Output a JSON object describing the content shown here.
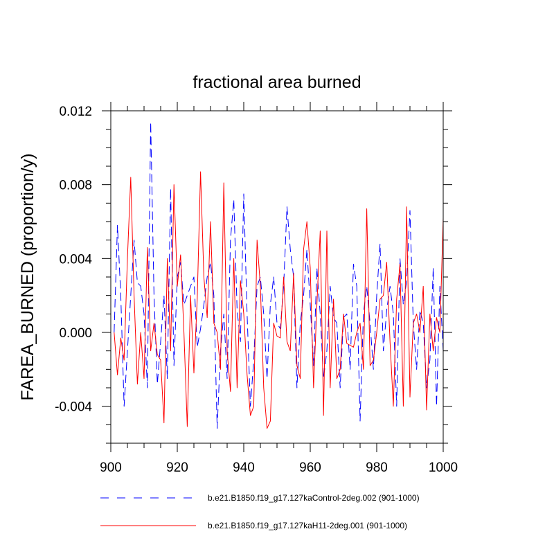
{
  "chart_data": {
    "type": "line",
    "title": "fractional area burned",
    "xlabel": "",
    "ylabel": "FAREA_BURNED  (proportion/y)",
    "xlim": [
      900,
      1000
    ],
    "ylim": [
      -0.006,
      0.012
    ],
    "xticks": [
      900,
      920,
      940,
      960,
      980,
      1000
    ],
    "xtick_labels": [
      "900",
      "920",
      "940",
      "960",
      "980",
      "1000"
    ],
    "yticks": [
      -0.004,
      0.0,
      0.004,
      0.008,
      0.012
    ],
    "ytick_labels": [
      "-0.004",
      "0.000",
      "0.004",
      "0.008",
      "0.012"
    ],
    "grid": false,
    "legend_placement": "bottom",
    "x": [
      901,
      902,
      903,
      904,
      905,
      906,
      907,
      908,
      909,
      910,
      911,
      912,
      913,
      914,
      915,
      916,
      917,
      918,
      919,
      920,
      921,
      922,
      923,
      924,
      925,
      926,
      927,
      928,
      929,
      930,
      931,
      932,
      933,
      934,
      935,
      936,
      937,
      938,
      939,
      940,
      941,
      942,
      943,
      944,
      945,
      946,
      947,
      948,
      949,
      950,
      951,
      952,
      953,
      954,
      955,
      956,
      957,
      958,
      959,
      960,
      961,
      962,
      963,
      964,
      965,
      966,
      967,
      968,
      969,
      970,
      971,
      972,
      973,
      974,
      975,
      976,
      977,
      978,
      979,
      980,
      981,
      982,
      983,
      984,
      985,
      986,
      987,
      988,
      989,
      990,
      991,
      992,
      993,
      994,
      995,
      996,
      997,
      998,
      999,
      1000
    ],
    "series": [
      {
        "name": "b.e21.B1850.f19_g17.127kaControl-2deg.002 (901-1000)",
        "color": "#0000ff",
        "dash": "dashed",
        "values": [
          0.0,
          0.0058,
          0.002,
          -0.004,
          -0.001,
          0.002,
          0.005,
          0.0027,
          0.0025,
          0.001,
          -0.003,
          0.0114,
          0.002,
          -0.0028,
          -0.0005,
          0.002,
          -0.0025,
          0.0078,
          -0.0018,
          0.003,
          0.0038,
          0.0015,
          0.002,
          0.0025,
          0.003,
          -0.0008,
          0.0002,
          0.0015,
          0.003,
          0.0038,
          0.002,
          -0.0052,
          -0.001,
          0.001,
          -0.0025,
          0.005,
          0.0072,
          0.0012,
          -0.0005,
          0.0075,
          0.001,
          -0.004,
          -0.0015,
          0.0025,
          0.003,
          0.001,
          -0.0025,
          0.0015,
          0.003,
          0.0005,
          0.0002,
          0.0025,
          0.0068,
          0.0045,
          0.003,
          -0.003,
          0.0005,
          0.002,
          0.0045,
          0.0015,
          -0.0018,
          0.0035,
          0.001,
          -0.0025,
          -0.001,
          0.0025,
          0.0008,
          0.0005,
          -0.003,
          0.0008,
          0.001,
          -0.002,
          0.0037,
          0.0025,
          -0.0048,
          0.001,
          0.0025,
          0.0005,
          -0.002,
          0.002,
          0.0048,
          -0.001,
          0.0012,
          0.0025,
          0.001,
          -0.004,
          0.004,
          0.0015,
          0.0028,
          0.0066,
          0.0005,
          -0.002,
          0.0012,
          0.0005,
          -0.003,
          -0.0015,
          0.0035,
          -0.004,
          0.0025,
          -0.001
        ]
      },
      {
        "name": "b.e21.B1850.f19_g17.127kaH11-2deg.001 (901-1000)",
        "color": "#ff0000",
        "dash": "solid",
        "values": [
          0.0,
          -0.0023,
          -0.0003,
          -0.0015,
          0.004,
          0.0084,
          0.002,
          -0.0028,
          0.0,
          -0.0025,
          0.0046,
          -0.001,
          0.0005,
          -0.0012,
          -0.0015,
          -0.0049,
          0.004,
          -0.001,
          0.008,
          0.0025,
          0.0042,
          0.0,
          -0.0051,
          0.002,
          -0.0022,
          0.0018,
          0.0087,
          0.003,
          0.0008,
          0.006,
          0.0005,
          0.0,
          -0.002,
          0.0081,
          -0.001,
          -0.0032,
          0.004,
          -0.003,
          0.0028,
          0.001,
          -0.0023,
          -0.0045,
          -0.004,
          0.005,
          0.0025,
          -0.003,
          -0.0052,
          -0.0048,
          0.0005,
          -0.0002,
          -0.0003,
          0.003,
          -0.0005,
          -0.001,
          0.0032,
          -0.0018,
          -0.0025,
          0.0045,
          0.006,
          0.0035,
          -0.003,
          0.0015,
          0.0055,
          -0.0045,
          0.0055,
          -0.003,
          0.0018,
          -0.0025,
          -0.002,
          0.001,
          -0.0006,
          -0.0007,
          -0.0008,
          0.0,
          0.0005,
          -0.002,
          0.0067,
          -0.0018,
          -0.0015,
          0.0,
          0.0018,
          0.002,
          0.0038,
          -0.0005,
          -0.004,
          0.0018,
          0.0037,
          -0.004,
          0.0068,
          -0.0035,
          0.0005,
          0.001,
          0.0,
          0.0025,
          -0.0042,
          0.001,
          -0.001,
          0.0008,
          0.0,
          0.0062
        ]
      }
    ]
  }
}
